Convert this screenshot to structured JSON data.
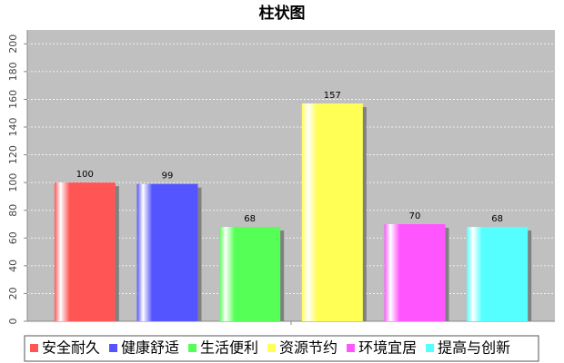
{
  "chart_data": {
    "type": "bar",
    "title": "柱状图",
    "series": [
      {
        "name": "安全耐久",
        "color": "#ff5555",
        "values": [
          100
        ]
      },
      {
        "name": "健康舒适",
        "color": "#5555ff",
        "values": [
          99
        ]
      },
      {
        "name": "生活便利",
        "color": "#55ff55",
        "values": [
          68
        ]
      },
      {
        "name": "资源节约",
        "color": "#ffff55",
        "values": [
          157
        ]
      },
      {
        "name": "环境宜居",
        "color": "#ff55ff",
        "values": [
          70
        ]
      },
      {
        "name": "提高与创新",
        "color": "#55ffff",
        "values": [
          68
        ]
      }
    ],
    "ylim": [
      0,
      210
    ],
    "yticks": [
      0,
      20,
      40,
      60,
      80,
      100,
      120,
      140,
      160,
      180,
      200
    ],
    "grid": true
  }
}
